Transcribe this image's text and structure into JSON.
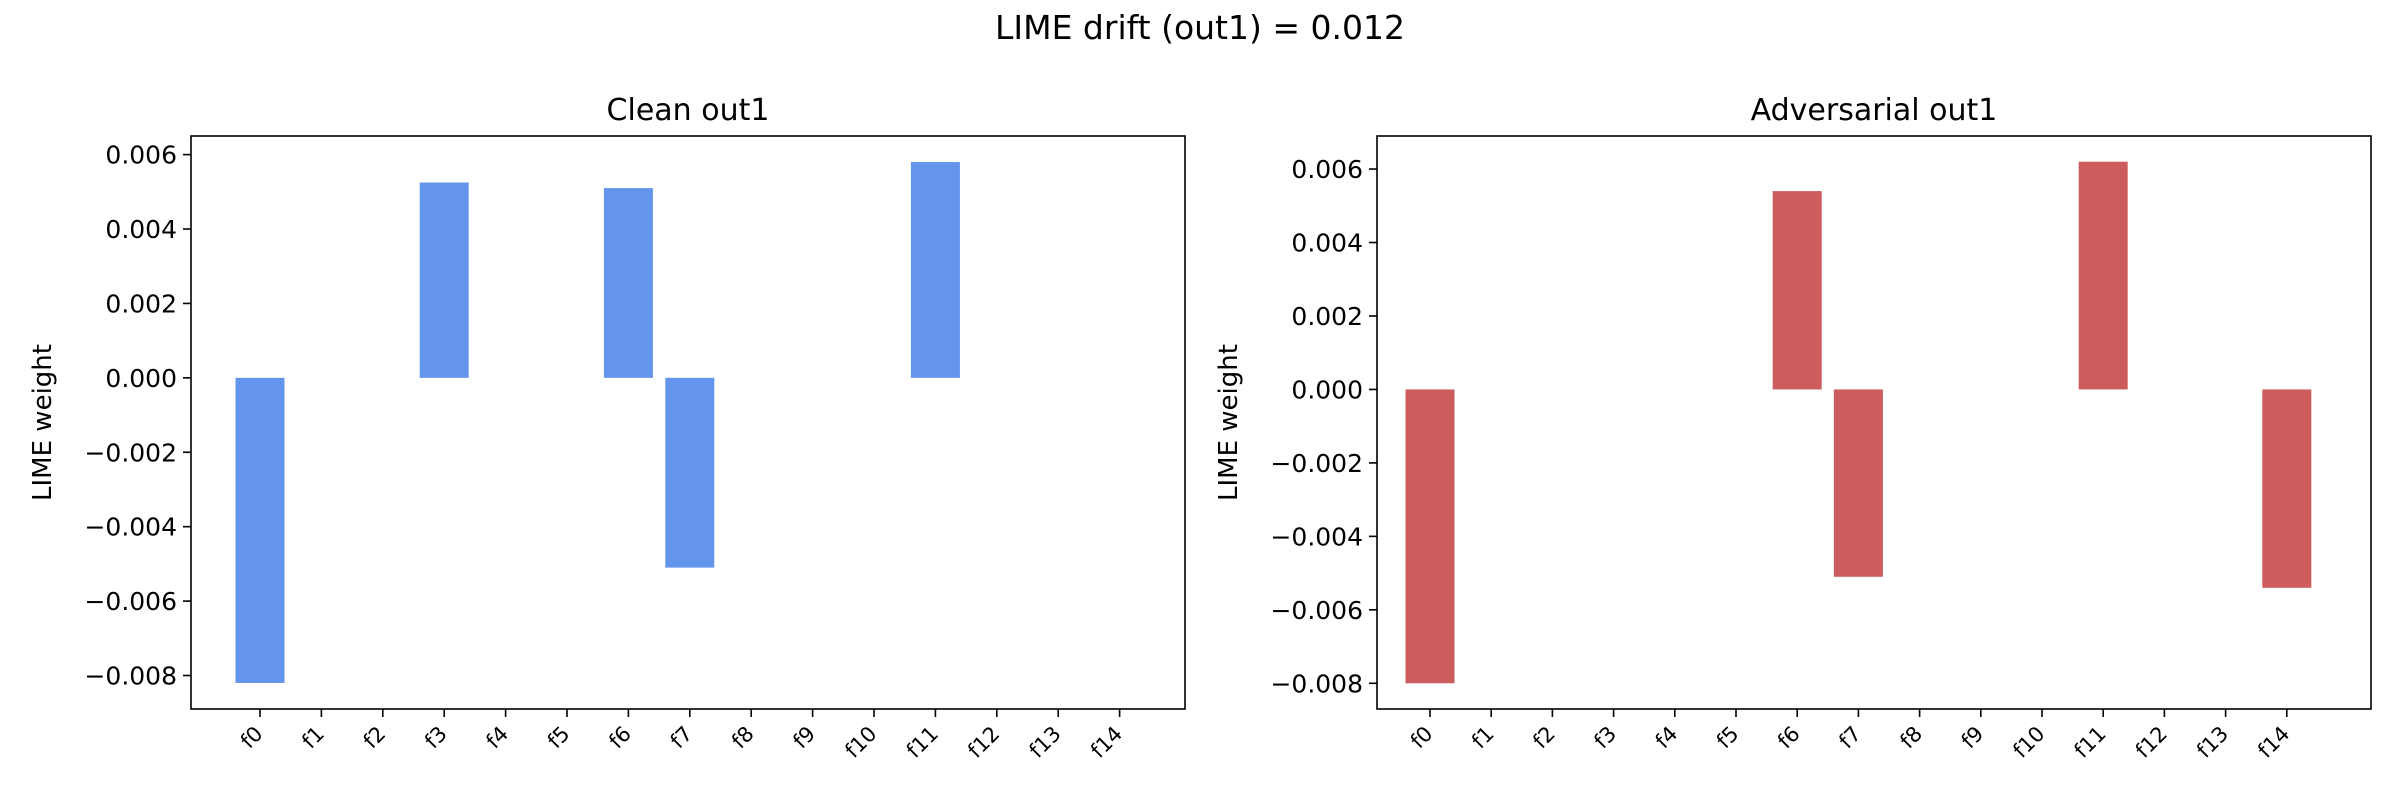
{
  "figure": {
    "title": "LIME drift (out1) = 0.012"
  },
  "chart_data": [
    {
      "type": "bar",
      "title": "Clean out1",
      "xlabel": "",
      "ylabel": "LIME weight",
      "categories": [
        "f0",
        "f1",
        "f2",
        "f3",
        "f4",
        "f5",
        "f6",
        "f7",
        "f8",
        "f9",
        "f10",
        "f11",
        "f12",
        "f13",
        "f14"
      ],
      "values": [
        -0.0082,
        0,
        0,
        0.00525,
        0,
        0,
        0.0051,
        -0.0051,
        0,
        0,
        0,
        0.0058,
        0,
        0,
        0
      ],
      "yticks": [
        "0.006",
        "0.004",
        "0.002",
        "0.000",
        "−0.002",
        "−0.004",
        "−0.006",
        "−0.008"
      ],
      "ylim": [
        -0.0089,
        0.0065
      ],
      "color": "#6495ED"
    },
    {
      "type": "bar",
      "title": "Adversarial out1",
      "xlabel": "",
      "ylabel": "LIME weight",
      "categories": [
        "f0",
        "f1",
        "f2",
        "f3",
        "f4",
        "f5",
        "f6",
        "f7",
        "f8",
        "f9",
        "f10",
        "f11",
        "f12",
        "f13",
        "f14"
      ],
      "values": [
        -0.008,
        0,
        0,
        0,
        0,
        0,
        0.0054,
        -0.0051,
        0,
        0,
        0,
        0.0062,
        0,
        0,
        -0.0054
      ],
      "yticks": [
        "0.006",
        "0.004",
        "0.002",
        "0.000",
        "−0.002",
        "−0.004",
        "−0.006",
        "−0.008"
      ],
      "ylim": [
        -0.0087,
        0.0069
      ],
      "color": "#CD5C5C"
    }
  ]
}
